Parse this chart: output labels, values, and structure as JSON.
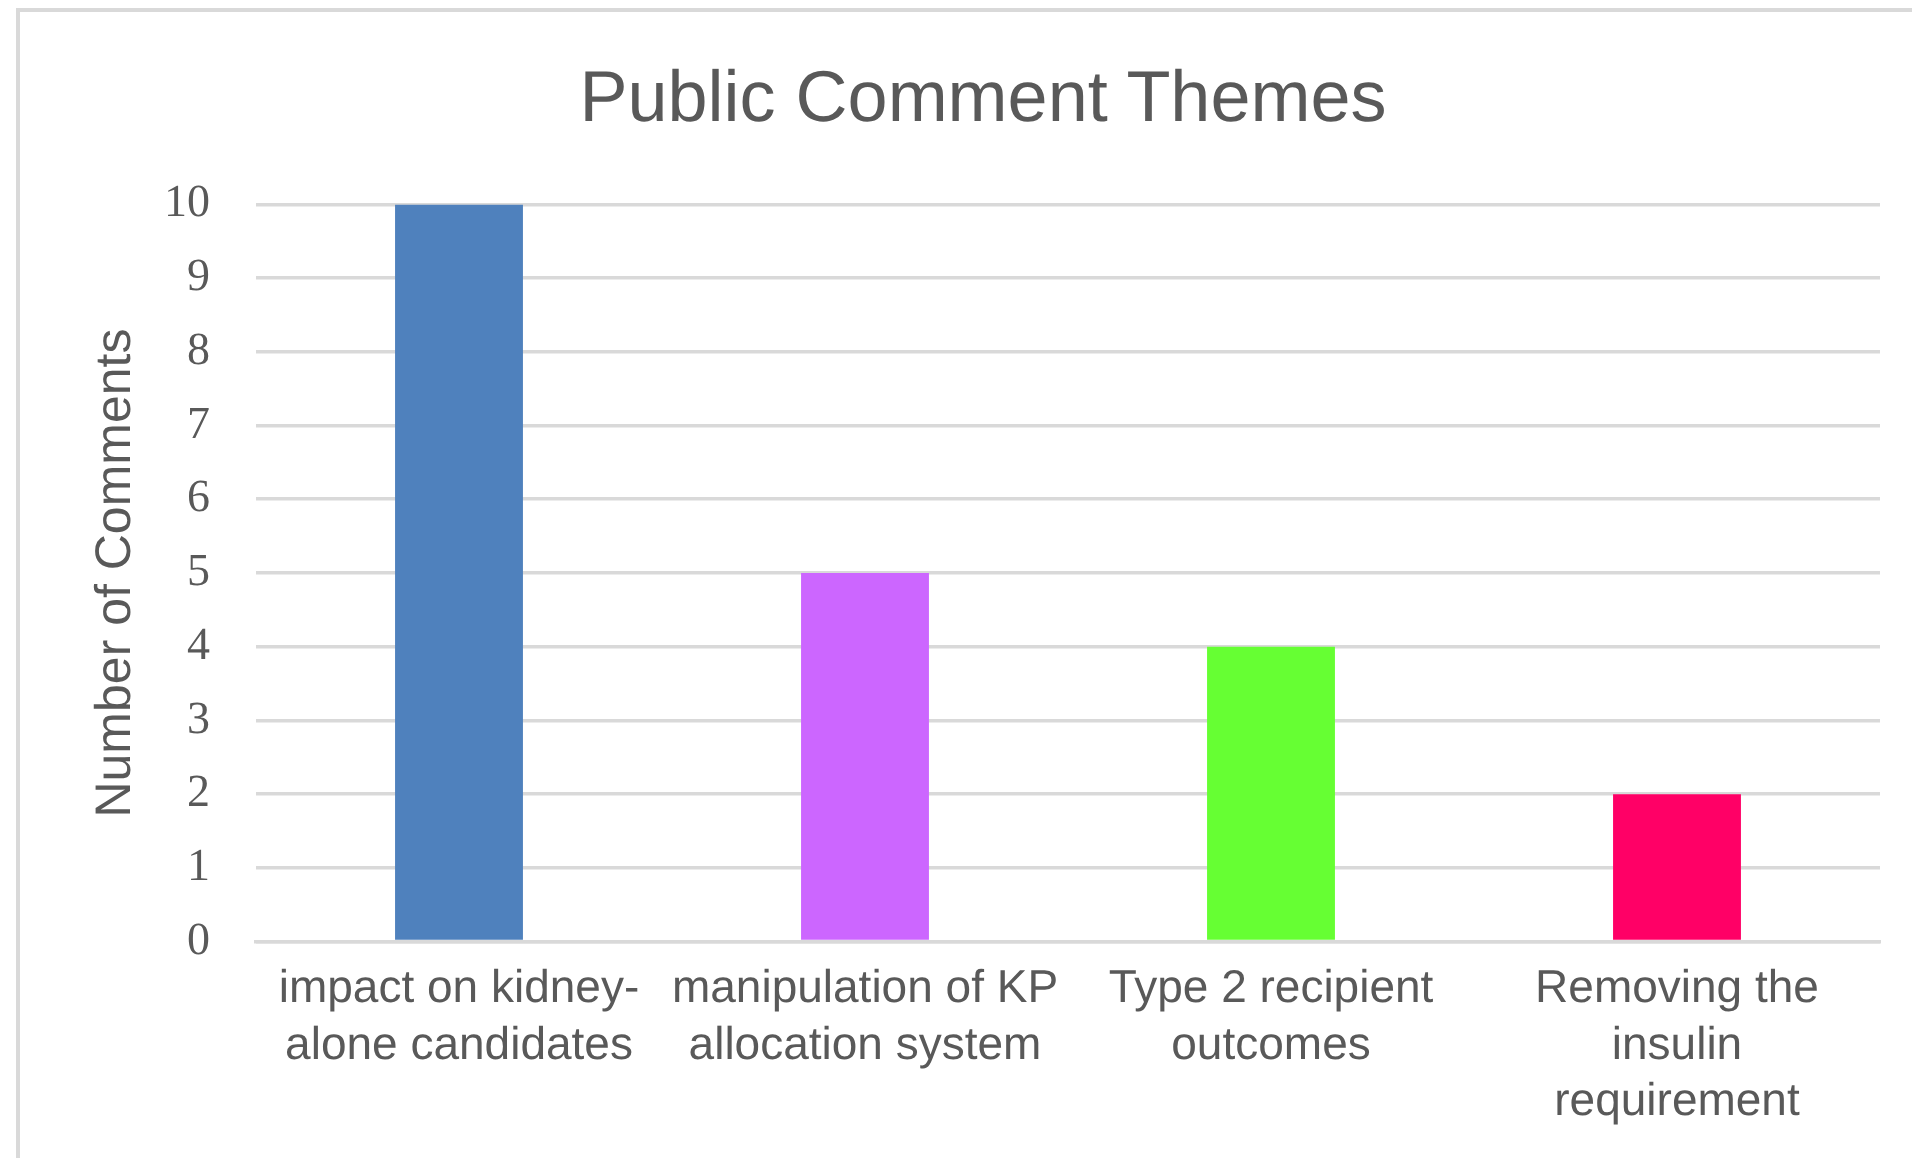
{
  "chart_data": {
    "type": "bar",
    "title": "Public Comment Themes",
    "ylabel": "Number of Comments",
    "categories": [
      "impact on kidney-alone candidates",
      "manipulation of KP allocation system",
      "Type 2 recipient outcomes",
      "Removing the insulin requirement"
    ],
    "values": [
      10,
      5,
      4,
      2
    ],
    "colors": [
      "#4f81bd",
      "#cc66ff",
      "#66ff33",
      "#ff0066"
    ],
    "ylim": [
      0,
      10
    ],
    "yticks": [
      0,
      1,
      2,
      3,
      4,
      5,
      6,
      7,
      8,
      9,
      10
    ],
    "grid": "y"
  }
}
